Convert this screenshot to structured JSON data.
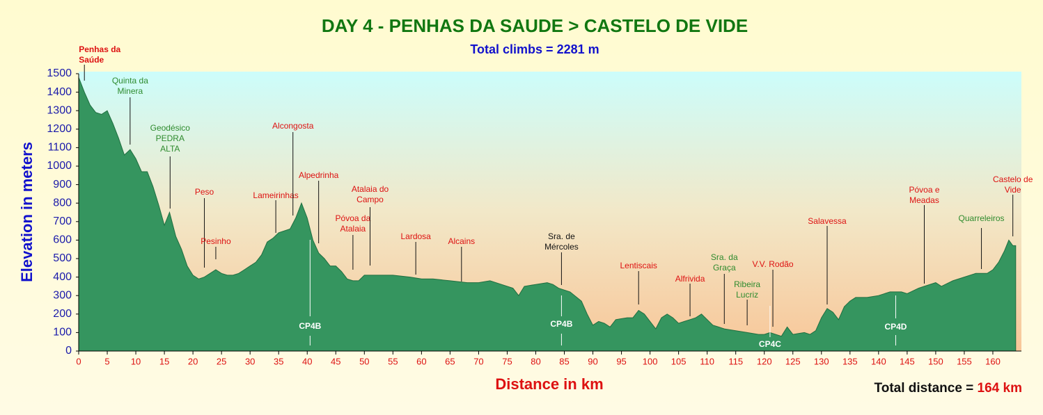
{
  "chart_data": {
    "type": "area",
    "title": "DAY 4 - PENHAS DA SAUDE > CASTELO DE VIDE",
    "subtitle": "Total climbs = 2281 m",
    "y_label": "Elevation in meters",
    "x_label": "Distance in km",
    "total_distance_label": "Total distance =",
    "total_distance": "164 km",
    "color": "#35955f",
    "xlim": [
      0,
      165
    ],
    "ylim": [
      0,
      1500
    ],
    "xticks": [
      0,
      5,
      10,
      15,
      20,
      25,
      30,
      35,
      40,
      45,
      50,
      55,
      60,
      65,
      70,
      75,
      80,
      85,
      90,
      95,
      100,
      105,
      110,
      115,
      120,
      125,
      130,
      135,
      140,
      145,
      150,
      155,
      160
    ],
    "yticks": [
      0,
      100,
      200,
      300,
      400,
      500,
      600,
      700,
      800,
      900,
      1000,
      1100,
      1200,
      1300,
      1400,
      1500
    ],
    "x": [
      0,
      1,
      2,
      3,
      4,
      5,
      6,
      7,
      8,
      9,
      10,
      11,
      12,
      13,
      14,
      15,
      15.9,
      17,
      18,
      19,
      20,
      21,
      22,
      23,
      24,
      25,
      26,
      27,
      28,
      29,
      30,
      31,
      32,
      33,
      34,
      35,
      36,
      37,
      38,
      39,
      40,
      41,
      42,
      43,
      44,
      45,
      46,
      47,
      48,
      49,
      50,
      52,
      55,
      58,
      60,
      62,
      65,
      68,
      70,
      72,
      74,
      76,
      77,
      78,
      80,
      82,
      83,
      84,
      86,
      88,
      89,
      90,
      91,
      92,
      93,
      94,
      96,
      97,
      98,
      99,
      100,
      101,
      102,
      103,
      104,
      105,
      106,
      107,
      108,
      109,
      110,
      111,
      112,
      113,
      115,
      117,
      119,
      120,
      121,
      122,
      123,
      124,
      125,
      127,
      128,
      129,
      130,
      131,
      132,
      133,
      134,
      135,
      136,
      138,
      140,
      142,
      144,
      145,
      147,
      148,
      150,
      151,
      153,
      155,
      157,
      159,
      160,
      161,
      162,
      162.8,
      163.5,
      164
    ],
    "values": [
      1480,
      1400,
      1330,
      1290,
      1280,
      1300,
      1230,
      1150,
      1060,
      1090,
      1040,
      970,
      970,
      890,
      790,
      680,
      750,
      620,
      550,
      460,
      410,
      390,
      400,
      420,
      440,
      420,
      410,
      410,
      420,
      440,
      460,
      480,
      520,
      590,
      610,
      640,
      650,
      660,
      720,
      800,
      720,
      600,
      530,
      500,
      460,
      460,
      430,
      390,
      380,
      380,
      410,
      410,
      410,
      400,
      390,
      390,
      380,
      370,
      370,
      380,
      360,
      340,
      300,
      350,
      360,
      370,
      360,
      340,
      320,
      270,
      200,
      140,
      160,
      150,
      130,
      170,
      180,
      180,
      220,
      200,
      160,
      120,
      180,
      200,
      180,
      150,
      160,
      170,
      180,
      200,
      170,
      140,
      130,
      120,
      110,
      100,
      90,
      90,
      100,
      90,
      80,
      130,
      90,
      100,
      90,
      110,
      180,
      230,
      210,
      170,
      240,
      270,
      290,
      290,
      300,
      320,
      320,
      310,
      340,
      350,
      370,
      350,
      380,
      400,
      420,
      420,
      440,
      480,
      540,
      600,
      570,
      570
    ],
    "annotations": [
      {
        "lines": [
          "Penhas da",
          "Saúde"
        ],
        "km": 1,
        "color": "#dd1111"
      },
      {
        "lines": [
          "Quinta da",
          "Minera"
        ],
        "km": 9,
        "color": "#2e8b2e"
      },
      {
        "lines": [
          "Geodésico",
          "PEDRA",
          "ALTA"
        ],
        "km": 16,
        "color": "#2e8b2e"
      },
      {
        "lines": [
          "Peso"
        ],
        "km": 22,
        "color": "#dd1111"
      },
      {
        "lines": [
          "Pesinho"
        ],
        "km": 24,
        "color": "#dd1111"
      },
      {
        "lines": [
          "Lameirinhas"
        ],
        "km": 34.5,
        "color": "#dd1111"
      },
      {
        "lines": [
          "Alcongosta"
        ],
        "km": 37.5,
        "color": "#dd1111"
      },
      {
        "lines": [
          "Alpedrinha"
        ],
        "km": 42,
        "color": "#dd1111"
      },
      {
        "lines": [
          "Póvoa da",
          "Atalaia"
        ],
        "km": 48,
        "color": "#dd1111"
      },
      {
        "lines": [
          "Atalaia do",
          "Campo"
        ],
        "km": 51,
        "color": "#dd1111"
      },
      {
        "lines": [
          "Lardosa"
        ],
        "km": 59,
        "color": "#dd1111"
      },
      {
        "lines": [
          "Alcains"
        ],
        "km": 67,
        "color": "#dd1111"
      },
      {
        "lines": [
          "Sra. de",
          "Mércoles"
        ],
        "km": 84.5,
        "color": "#111111"
      },
      {
        "lines": [
          "Lentiscais"
        ],
        "km": 98,
        "color": "#dd1111"
      },
      {
        "lines": [
          "Alfrivida"
        ],
        "km": 107,
        "color": "#dd1111"
      },
      {
        "lines": [
          "Sra. da",
          "Graça"
        ],
        "km": 113,
        "color": "#2e8b2e"
      },
      {
        "lines": [
          "Ribeira",
          "Lucriz"
        ],
        "km": 117,
        "color": "#2e8b2e"
      },
      {
        "lines": [
          "V.V. Rodão"
        ],
        "km": 121.5,
        "color": "#dd1111"
      },
      {
        "lines": [
          "Salavessa"
        ],
        "km": 131,
        "color": "#dd1111"
      },
      {
        "lines": [
          "Póvoa e",
          "Meadas"
        ],
        "km": 148,
        "color": "#dd1111"
      },
      {
        "lines": [
          "Quarreleiros"
        ],
        "km": 158,
        "color": "#2e8b2e"
      },
      {
        "lines": [
          "Castelo de",
          "Vide"
        ],
        "km": 163.5,
        "color": "#dd1111"
      }
    ],
    "checkpoints": [
      {
        "label": "CP4B",
        "km": 40.5
      },
      {
        "label": "CP4B",
        "km": 84.5
      },
      {
        "label": "CP4C",
        "km": 121
      },
      {
        "label": "CP4D",
        "km": 143
      }
    ]
  }
}
